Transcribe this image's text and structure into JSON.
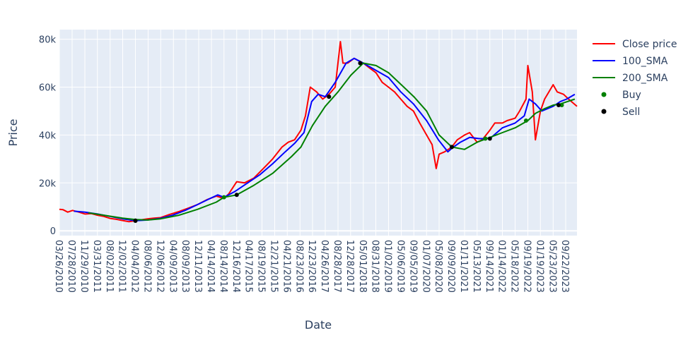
{
  "chart_data": {
    "type": "line",
    "xlabel": "Date",
    "ylabel": "Price",
    "x_range": [
      "2010-03-26",
      "2024-01-10"
    ],
    "ylim": [
      -2000,
      84000
    ],
    "y_ticks": [
      0,
      20000,
      40000,
      60000,
      80000
    ],
    "y_tick_labels": [
      "0",
      "20k",
      "40k",
      "60k",
      "80k"
    ],
    "x_ticks": [
      "2010-03-26",
      "2010-07-28",
      "2010-11-29",
      "2011-03-31",
      "2011-08-02",
      "2011-12-02",
      "2012-04-04",
      "2012-08-06",
      "2012-12-06",
      "2013-04-09",
      "2013-08-09",
      "2013-12-11",
      "2014-04-14",
      "2014-08-14",
      "2014-12-16",
      "2015-04-17",
      "2015-08-19",
      "2015-12-21",
      "2016-04-21",
      "2016-08-23",
      "2016-12-23",
      "2017-04-26",
      "2017-08-28",
      "2017-12-28",
      "2018-05-01",
      "2018-08-31",
      "2019-01-02",
      "2019-05-06",
      "2019-09-05",
      "2020-01-07",
      "2020-05-08",
      "2020-09-09",
      "2021-01-11",
      "2021-05-13",
      "2021-09-14",
      "2022-01-14",
      "2022-05-18",
      "2022-09-19",
      "2023-01-19",
      "2023-05-23",
      "2023-09-22"
    ],
    "x_tick_labels": [
      "03/26/2010",
      "07/28/2010",
      "11/29/2010",
      "03/31/2011",
      "08/02/2011",
      "12/02/2011",
      "04/04/2012",
      "08/06/2012",
      "12/06/2012",
      "04/09/2013",
      "08/09/2013",
      "12/11/2013",
      "04/14/2014",
      "08/14/2014",
      "12/16/2014",
      "04/17/2015",
      "08/19/2015",
      "12/21/2015",
      "04/21/2016",
      "08/23/2016",
      "12/23/2016",
      "04/26/2017",
      "08/28/2017",
      "12/28/2017",
      "05/01/2018",
      "08/31/2018",
      "01/02/2019",
      "05/06/2019",
      "09/05/2019",
      "01/07/2020",
      "05/08/2020",
      "09/09/2020",
      "01/11/2021",
      "05/13/2021",
      "09/14/2021",
      "01/14/2022",
      "05/18/2022",
      "09/19/2022",
      "01/19/2023",
      "05/23/2023",
      "09/22/2023"
    ],
    "legend_position": "top-right",
    "grid": true,
    "colors": {
      "plot_bg": "#e5ecf6",
      "grid": "#ffffff",
      "text": "#2a3f5f"
    },
    "series": [
      {
        "name": "Close price",
        "mode": "lines",
        "color": "#ff0000",
        "x": [
          "2010-03-26",
          "2010-05-01",
          "2010-06-15",
          "2010-08-01",
          "2010-10-01",
          "2010-12-01",
          "2011-02-01",
          "2011-04-01",
          "2011-06-01",
          "2011-08-01",
          "2011-10-01",
          "2011-12-01",
          "2012-02-01",
          "2012-04-04",
          "2012-06-01",
          "2012-08-01",
          "2012-10-01",
          "2012-12-06",
          "2013-03-01",
          "2013-06-01",
          "2013-09-01",
          "2013-12-01",
          "2014-03-01",
          "2014-06-01",
          "2014-08-14",
          "2014-10-01",
          "2014-12-16",
          "2015-03-01",
          "2015-06-01",
          "2015-09-01",
          "2015-12-01",
          "2016-03-01",
          "2016-05-01",
          "2016-07-01",
          "2016-09-01",
          "2016-10-15",
          "2016-12-01",
          "2017-02-01",
          "2017-04-01",
          "2017-06-01",
          "2017-08-01",
          "2017-09-20",
          "2017-10-15",
          "2017-12-01",
          "2018-02-01",
          "2018-05-01",
          "2018-07-01",
          "2018-09-01",
          "2018-11-01",
          "2019-01-01",
          "2019-03-01",
          "2019-05-01",
          "2019-07-01",
          "2019-09-01",
          "2019-11-01",
          "2020-01-07",
          "2020-03-01",
          "2020-04-10",
          "2020-05-08",
          "2020-07-01",
          "2020-09-09",
          "2020-11-01",
          "2021-01-11",
          "2021-03-01",
          "2021-05-13",
          "2021-07-01",
          "2021-09-14",
          "2021-11-01",
          "2022-01-14",
          "2022-03-01",
          "2022-05-18",
          "2022-07-01",
          "2022-09-01",
          "2022-09-19",
          "2022-11-01",
          "2022-12-01",
          "2023-01-19",
          "2023-03-01",
          "2023-05-23",
          "2023-07-01",
          "2023-09-01",
          "2023-10-20",
          "2024-01-10"
        ],
        "y": [
          9000,
          8800,
          7800,
          8500,
          7800,
          7000,
          7200,
          6500,
          6000,
          5200,
          4800,
          4300,
          3800,
          4200,
          4600,
          5000,
          5300,
          5500,
          6800,
          8000,
          9500,
          11000,
          13000,
          14500,
          13500,
          15500,
          20500,
          20000,
          22000,
          26000,
          30000,
          35000,
          37000,
          38000,
          42000,
          48000,
          60000,
          58000,
          55000,
          57000,
          60000,
          79000,
          70000,
          70000,
          72000,
          70000,
          68000,
          66000,
          62000,
          60000,
          58000,
          55000,
          52000,
          50000,
          45000,
          40000,
          36000,
          26000,
          32000,
          33000,
          35000,
          38000,
          40000,
          41000,
          37000,
          38000,
          42000,
          45000,
          45000,
          46000,
          47000,
          50000,
          55000,
          69000,
          58000,
          38000,
          50000,
          55000,
          61000,
          58000,
          57000,
          55000,
          52000
        ]
      },
      {
        "name": "100_SMA",
        "mode": "lines",
        "color": "#0000ff",
        "x": [
          "2010-08-15",
          "2010-12-01",
          "2011-04-01",
          "2011-08-01",
          "2011-12-01",
          "2012-04-04",
          "2012-08-01",
          "2012-12-01",
          "2013-04-01",
          "2013-08-01",
          "2013-12-01",
          "2014-04-01",
          "2014-06-15",
          "2014-08-14",
          "2014-12-01",
          "2015-04-01",
          "2015-08-01",
          "2015-12-01",
          "2016-04-01",
          "2016-07-01",
          "2016-10-01",
          "2016-12-15",
          "2017-02-15",
          "2017-04-26",
          "2017-08-01",
          "2017-11-15",
          "2018-02-01",
          "2018-05-01",
          "2018-09-01",
          "2019-01-01",
          "2019-05-01",
          "2019-09-01",
          "2020-01-07",
          "2020-05-01",
          "2020-08-01",
          "2020-09-09",
          "2020-12-01",
          "2021-03-01",
          "2021-06-01",
          "2021-09-14",
          "2022-01-14",
          "2022-05-18",
          "2022-08-15",
          "2022-10-01",
          "2022-12-01",
          "2023-02-01",
          "2023-05-23",
          "2023-08-01",
          "2023-10-01",
          "2023-12-20"
        ],
        "y": [
          8200,
          7800,
          7000,
          6000,
          5000,
          4200,
          4500,
          5200,
          6500,
          8500,
          11000,
          13500,
          15000,
          14000,
          16500,
          20000,
          23500,
          28000,
          33000,
          36500,
          41000,
          54000,
          57000,
          56000,
          62000,
          70000,
          72000,
          70000,
          67000,
          64000,
          58000,
          53000,
          46000,
          38000,
          33000,
          34500,
          37000,
          39000,
          38500,
          38500,
          43000,
          45000,
          48000,
          55000,
          53000,
          50000,
          52000,
          54000,
          55000,
          57000
        ]
      },
      {
        "name": "200_SMA",
        "mode": "lines",
        "color": "#008000",
        "x": [
          "2011-01-01",
          "2011-06-01",
          "2011-12-01",
          "2012-04-04",
          "2012-08-01",
          "2012-12-06",
          "2013-06-01",
          "2013-12-01",
          "2014-06-01",
          "2014-08-14",
          "2014-12-16",
          "2015-06-01",
          "2015-12-01",
          "2016-06-01",
          "2016-09-01",
          "2016-12-23",
          "2017-04-26",
          "2017-08-28",
          "2018-01-01",
          "2018-05-01",
          "2018-09-01",
          "2019-01-02",
          "2019-05-06",
          "2019-09-05",
          "2020-01-07",
          "2020-05-08",
          "2020-09-09",
          "2021-01-11",
          "2021-05-13",
          "2021-09-14",
          "2022-01-14",
          "2022-05-18",
          "2022-09-19",
          "2022-12-01",
          "2023-03-01",
          "2023-05-23",
          "2023-08-01",
          "2023-12-20"
        ],
        "y": [
          7500,
          6500,
          5300,
          4700,
          4500,
          5000,
          6500,
          9000,
          12000,
          14000,
          15000,
          19000,
          24000,
          31000,
          35000,
          44000,
          52000,
          58000,
          65000,
          70000,
          69000,
          66000,
          61000,
          56000,
          50000,
          40000,
          35000,
          34000,
          37000,
          39000,
          41000,
          43000,
          46000,
          49000,
          51000,
          52500,
          53000,
          55000
        ]
      },
      {
        "name": "Buy",
        "mode": "markers",
        "color": "#008000",
        "x": [
          "2012-04-04",
          "2014-08-14",
          "2017-06-01",
          "2020-09-09",
          "2021-08-01",
          "2022-09-01",
          "2023-08-15"
        ],
        "y": [
          4300,
          14000,
          56000,
          35000,
          38500,
          46000,
          52500
        ]
      },
      {
        "name": "Sell",
        "mode": "markers",
        "color": "#000000",
        "x": [
          "2012-04-04",
          "2014-12-16",
          "2017-06-01",
          "2018-04-01",
          "2020-09-09",
          "2021-09-14",
          "2023-07-15"
        ],
        "y": [
          4200,
          15000,
          56000,
          70000,
          35000,
          38500,
          52500
        ]
      }
    ]
  }
}
